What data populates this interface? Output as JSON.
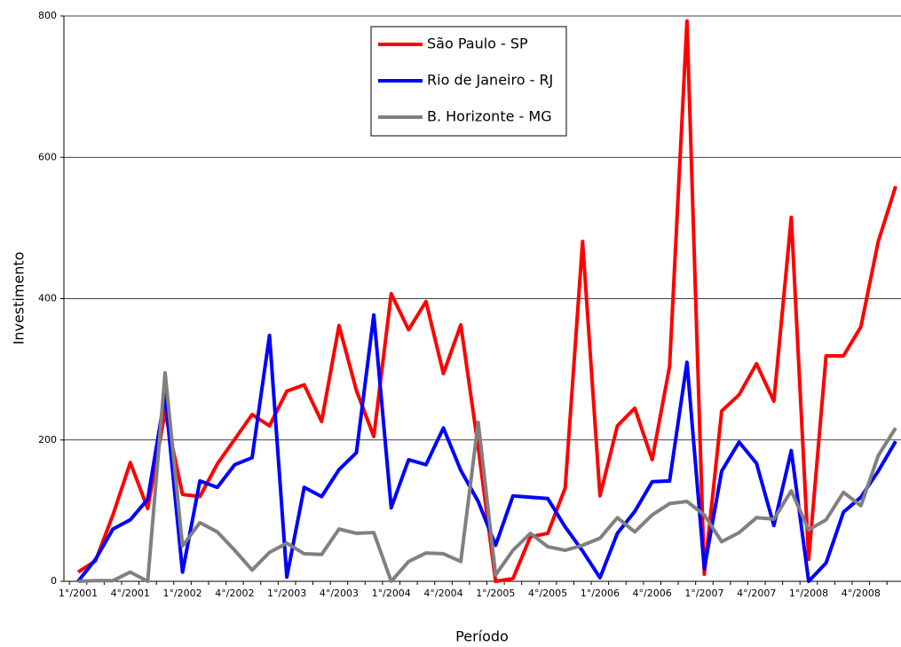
{
  "chart_data": {
    "type": "line",
    "x_label": "Período",
    "y_label": "Investimento",
    "categories": [
      "1°/2001",
      null,
      null,
      "4°/2001",
      null,
      null,
      "1°/2002",
      null,
      null,
      "4°/2002",
      null,
      null,
      "1°/2003",
      null,
      null,
      "4°/2003",
      null,
      null,
      "1°/2004",
      null,
      null,
      "4°/2004",
      null,
      null,
      "1°/2005",
      null,
      null,
      "4°/2005",
      null,
      null,
      "1°/2006",
      null,
      null,
      "4°/2006",
      null,
      null,
      "1°/2007",
      null,
      null,
      "4°/2007",
      null,
      null,
      "1°/2008",
      null,
      null,
      "4°/2008",
      null,
      null
    ],
    "series": [
      {
        "name": "São Paulo - SP",
        "color": "#ff0000",
        "values": [
          13,
          29,
          94,
          168,
          103,
          240,
          123,
          120,
          166,
          201,
          236,
          220,
          269,
          278,
          226,
          362,
          270,
          205,
          407,
          356,
          396,
          294,
          363,
          190,
          0,
          4,
          63,
          68,
          132,
          481,
          121,
          220,
          245,
          172,
          304,
          793,
          10,
          241,
          264,
          308,
          255,
          515,
          31,
          319,
          319,
          360,
          481,
          559
        ]
      },
      {
        "name": "Rio de Janeiro - RJ",
        "color": "#0000ff",
        "values": [
          0,
          31,
          74,
          87,
          116,
          264,
          13,
          142,
          133,
          165,
          175,
          348,
          6,
          133,
          120,
          158,
          182,
          377,
          104,
          172,
          165,
          217,
          157,
          113,
          51,
          121,
          119,
          117,
          77,
          43,
          5,
          68,
          99,
          141,
          142,
          310,
          18,
          156,
          197,
          167,
          79,
          185,
          0,
          26,
          98,
          119,
          156,
          198
        ]
      },
      {
        "name": "B. Horizonte - MG",
        "color": "#808080",
        "values": [
          0,
          1,
          1,
          13,
          0,
          295,
          50,
          83,
          70,
          44,
          16,
          41,
          54,
          39,
          38,
          74,
          68,
          69,
          0,
          28,
          40,
          39,
          28,
          225,
          9,
          44,
          68,
          49,
          44,
          51,
          61,
          90,
          70,
          94,
          110,
          113,
          94,
          56,
          69,
          90,
          88,
          128,
          73,
          87,
          126,
          107,
          178,
          217
        ]
      }
    ],
    "ylim": [
      0,
      800
    ],
    "yticks": [
      0,
      200,
      400,
      600,
      800
    ],
    "grid": true
  }
}
